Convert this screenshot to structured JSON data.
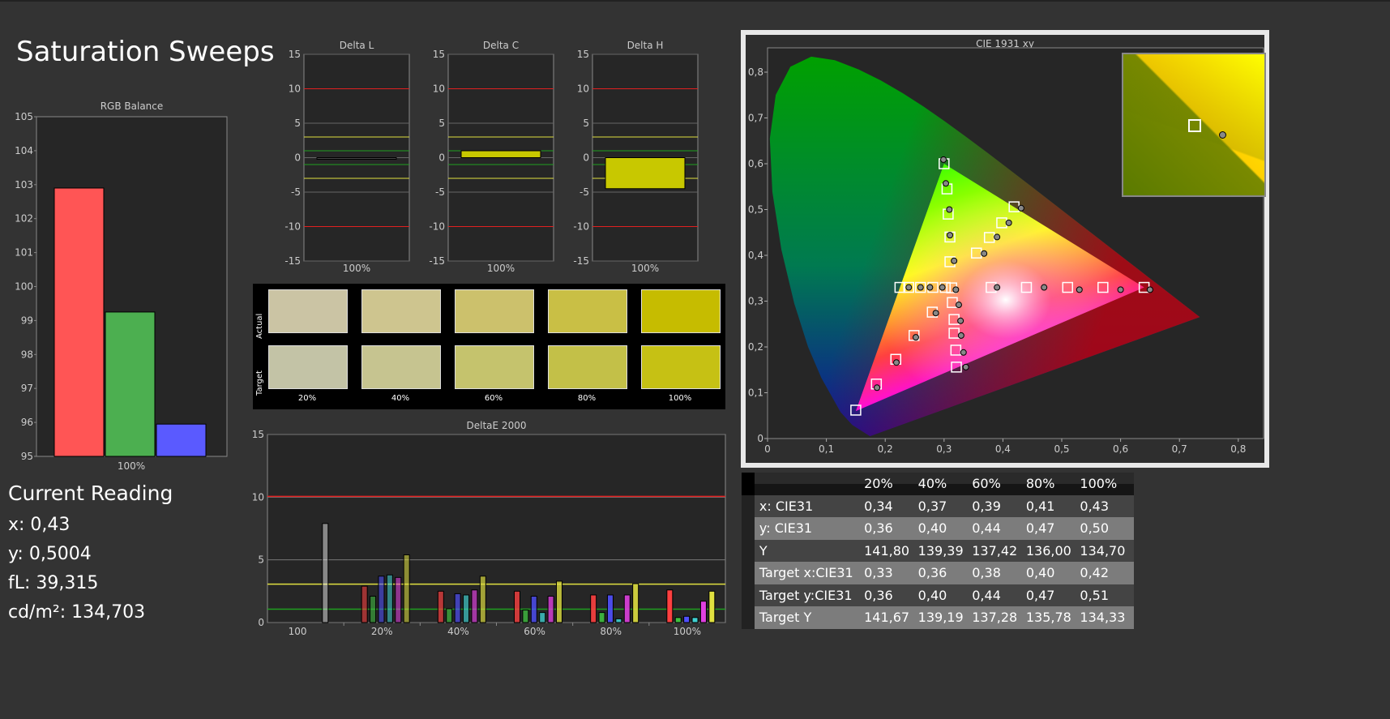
{
  "title": "Saturation Sweeps",
  "rgb_balance": {
    "title": "RGB Balance",
    "ylim": [
      95,
      105
    ],
    "ticks": [
      95,
      96,
      97,
      98,
      99,
      100,
      101,
      102,
      103,
      104,
      105
    ],
    "category": "100%",
    "values": [
      {
        "channel": "R",
        "value": 102.9,
        "color": "#ff5555"
      },
      {
        "channel": "G",
        "value": 99.25,
        "color": "#4caf50"
      },
      {
        "channel": "B",
        "value": 95.95,
        "color": "#5a5aff"
      }
    ]
  },
  "current_reading": {
    "heading": "Current Reading",
    "x": "x: 0,43",
    "y": "y: 0,5004",
    "fl": "fL: 39,315",
    "cdm2": "cd/m²: 134,703"
  },
  "delta_charts": [
    {
      "title": "Delta L",
      "category": "100%",
      "value": -0.1,
      "fill": "#444444"
    },
    {
      "title": "Delta C",
      "category": "100%",
      "value": 1.0,
      "fill": "#c8c800"
    },
    {
      "title": "Delta H",
      "category": "100%",
      "value": -4.5,
      "fill": "#c8c800"
    }
  ],
  "delta_axis": {
    "ylim": [
      -15,
      15
    ],
    "ticks": [
      "15",
      "10",
      "5",
      "0",
      "-5",
      "-10",
      "-15"
    ],
    "tick_values": [
      15,
      10,
      5,
      0,
      -5,
      -10,
      -15
    ],
    "limit_lines": {
      "red": 10,
      "yellow": 3,
      "green": 1
    }
  },
  "swatches": {
    "actual_label": "Actual",
    "target_label": "Target",
    "items": [
      {
        "label": "20%",
        "actual": "#cbc4a4",
        "target": "#c3c3a6"
      },
      {
        "label": "40%",
        "actual": "#cec58f",
        "target": "#c6c490"
      },
      {
        "label": "60%",
        "actual": "#ccc16c",
        "target": "#c5c36d"
      },
      {
        "label": "80%",
        "actual": "#c9bf45",
        "target": "#c3c048"
      },
      {
        "label": "100%",
        "actual": "#c6bc00",
        "target": "#c6c114"
      }
    ]
  },
  "chart_data": [
    {
      "type": "bar",
      "title": "DeltaE 2000",
      "ylim": [
        0,
        15
      ],
      "ticks": [
        0,
        5,
        10,
        15
      ],
      "limit_lines": {
        "red": 10,
        "yellow": 3,
        "green": 1
      },
      "categories": [
        "100",
        "20%",
        "40%",
        "60%",
        "80%",
        "100%"
      ],
      "series": [
        {
          "color": "#ff4040",
          "values": [
            null,
            2.9,
            2.5,
            2.5,
            2.2,
            2.6
          ]
        },
        {
          "color": "#40c040",
          "values": [
            null,
            2.1,
            1.1,
            1.0,
            0.8,
            0.4
          ]
        },
        {
          "color": "#5050ff",
          "values": [
            null,
            3.7,
            2.3,
            2.1,
            2.2,
            0.5
          ]
        },
        {
          "color": "#40d0d0",
          "values": [
            null,
            3.8,
            2.2,
            0.8,
            0.3,
            0.4
          ]
        },
        {
          "color": "#e040e0",
          "values": [
            null,
            3.6,
            2.6,
            2.1,
            2.2,
            1.7
          ]
        },
        {
          "color": "#e0e040",
          "values": [
            null,
            5.4,
            3.7,
            3.3,
            3.1,
            2.5
          ]
        },
        {
          "color": "#ffffff",
          "values": [
            7.9,
            null,
            null,
            null,
            null,
            null
          ]
        }
      ]
    },
    {
      "type": "scatter",
      "title": "CIE 1931 xy",
      "xlim": [
        0,
        0.85
      ],
      "ylim": [
        0,
        0.85
      ],
      "xticks": [
        "0",
        "0,1",
        "0,2",
        "0,3",
        "0,4",
        "0,5",
        "0,6",
        "0,7",
        "0,8"
      ],
      "yticks": [
        "0",
        "0,1",
        "0,2",
        "0,3",
        "0,4",
        "0,5",
        "0,6",
        "0,7",
        "0,8"
      ],
      "gamut": [
        [
          0.64,
          0.33
        ],
        [
          0.3,
          0.6
        ],
        [
          0.15,
          0.06
        ]
      ],
      "targets": [
        [
          0.313,
          0.329
        ],
        [
          0.38,
          0.33
        ],
        [
          0.44,
          0.33
        ],
        [
          0.51,
          0.33
        ],
        [
          0.57,
          0.33
        ],
        [
          0.64,
          0.33
        ],
        [
          0.31,
          0.386
        ],
        [
          0.31,
          0.44
        ],
        [
          0.307,
          0.49
        ],
        [
          0.305,
          0.545
        ],
        [
          0.3,
          0.6
        ],
        [
          0.28,
          0.276
        ],
        [
          0.249,
          0.225
        ],
        [
          0.218,
          0.173
        ],
        [
          0.185,
          0.119
        ],
        [
          0.15,
          0.062
        ],
        [
          0.302,
          0.33
        ],
        [
          0.281,
          0.33
        ],
        [
          0.26,
          0.33
        ],
        [
          0.24,
          0.33
        ],
        [
          0.225,
          0.33
        ],
        [
          0.314,
          0.297
        ],
        [
          0.317,
          0.26
        ],
        [
          0.317,
          0.23
        ],
        [
          0.32,
          0.193
        ],
        [
          0.321,
          0.156
        ],
        [
          0.355,
          0.405
        ],
        [
          0.377,
          0.439
        ],
        [
          0.398,
          0.471
        ],
        [
          0.419,
          0.506
        ]
      ],
      "measured": [
        [
          0.32,
          0.325
        ],
        [
          0.39,
          0.33
        ],
        [
          0.47,
          0.33
        ],
        [
          0.53,
          0.325
        ],
        [
          0.6,
          0.325
        ],
        [
          0.65,
          0.325
        ],
        [
          0.317,
          0.388
        ],
        [
          0.31,
          0.444
        ],
        [
          0.309,
          0.5
        ],
        [
          0.303,
          0.557
        ],
        [
          0.299,
          0.609
        ],
        [
          0.286,
          0.274
        ],
        [
          0.252,
          0.221
        ],
        [
          0.219,
          0.166
        ],
        [
          0.186,
          0.111
        ],
        [
          0.297,
          0.33
        ],
        [
          0.276,
          0.33
        ],
        [
          0.26,
          0.33
        ],
        [
          0.24,
          0.33
        ],
        [
          0.325,
          0.292
        ],
        [
          0.328,
          0.257
        ],
        [
          0.329,
          0.225
        ],
        [
          0.333,
          0.188
        ],
        [
          0.337,
          0.156
        ],
        [
          0.368,
          0.404
        ],
        [
          0.39,
          0.44
        ],
        [
          0.41,
          0.471
        ],
        [
          0.431,
          0.503
        ]
      ]
    }
  ],
  "table": {
    "headers": [
      "",
      "20%",
      "40%",
      "60%",
      "80%",
      "100%"
    ],
    "rows": [
      [
        "x: CIE31",
        "0,34",
        "0,37",
        "0,39",
        "0,41",
        "0,43"
      ],
      [
        "y: CIE31",
        "0,36",
        "0,40",
        "0,44",
        "0,47",
        "0,50"
      ],
      [
        "Y",
        "141,80",
        "139,39",
        "137,42",
        "136,00",
        "134,70"
      ],
      [
        "Target x:CIE31",
        "0,33",
        "0,36",
        "0,38",
        "0,40",
        "0,42"
      ],
      [
        "Target y:CIE31",
        "0,36",
        "0,40",
        "0,44",
        "0,47",
        "0,51"
      ],
      [
        "Target Y",
        "141,67",
        "139,19",
        "137,28",
        "135,78",
        "134,33"
      ]
    ]
  }
}
